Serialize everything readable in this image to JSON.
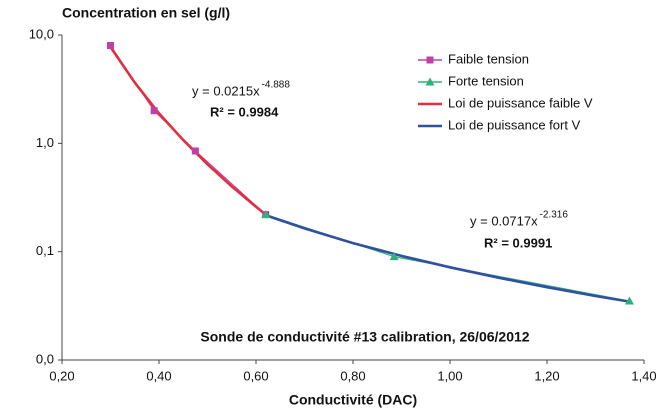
{
  "chart_data": {
    "type": "line",
    "title": "Concentration en sel (g/l)",
    "x_label": "Conductivité (DAC)",
    "log_y": true,
    "grid": false,
    "legend_position": "upper-right",
    "xlim": [
      0.2,
      1.4
    ],
    "xticks": [
      {
        "value": 0.2,
        "label": "0,20"
      },
      {
        "value": 0.4,
        "label": "0,40"
      },
      {
        "value": 0.6,
        "label": "0,60"
      },
      {
        "value": 0.8,
        "label": "0,80"
      },
      {
        "value": 1.0,
        "label": "1,00"
      },
      {
        "value": 1.2,
        "label": "1,20"
      },
      {
        "value": 1.4,
        "label": "1,40"
      }
    ],
    "ylim": [
      0.01,
      10
    ],
    "yticks": [
      {
        "value": 0.01,
        "label": "0,0"
      },
      {
        "value": 0.1,
        "label": "0,1"
      },
      {
        "value": 1,
        "label": "1,0"
      },
      {
        "value": 10,
        "label": "10,0"
      }
    ],
    "series": [
      {
        "name": "Faible tension",
        "color": "#c040a8",
        "marker": "square",
        "x": [
          0.3,
          0.39,
          0.475,
          0.62
        ],
        "values": [
          8.0,
          2.0,
          0.85,
          0.22
        ]
      },
      {
        "name": "Forte tension",
        "color": "#2fb07a",
        "marker": "triangle",
        "x": [
          0.62,
          0.885,
          1.37
        ],
        "values": [
          0.22,
          0.09,
          0.035
        ]
      },
      {
        "name": "Loi de puissance faible V",
        "color": "#e03040",
        "x": [
          0.3,
          0.35,
          0.4,
          0.45,
          0.5,
          0.55,
          0.6,
          0.62
        ],
        "values": [
          7.74,
          3.64,
          1.89,
          1.07,
          0.64,
          0.4,
          0.26,
          0.22
        ]
      },
      {
        "name": "Loi de puissance fort V",
        "color": "#3050a0",
        "x": [
          0.62,
          0.7,
          0.8,
          0.9,
          1.0,
          1.1,
          1.2,
          1.3,
          1.37
        ],
        "values": [
          0.217,
          0.164,
          0.12,
          0.0915,
          0.0717,
          0.0575,
          0.047,
          0.039,
          0.0346
        ]
      }
    ],
    "annotations": [
      {
        "text": "y = 0.0215x",
        "exponent": "-4.888",
        "r2": "R² = 0.9984"
      },
      {
        "text": "y = 0.0717x",
        "exponent": "-2.316",
        "r2": "R² = 0.9991"
      }
    ],
    "caption": "Sonde de conductivité #13 calibration, 26/06/2012"
  }
}
